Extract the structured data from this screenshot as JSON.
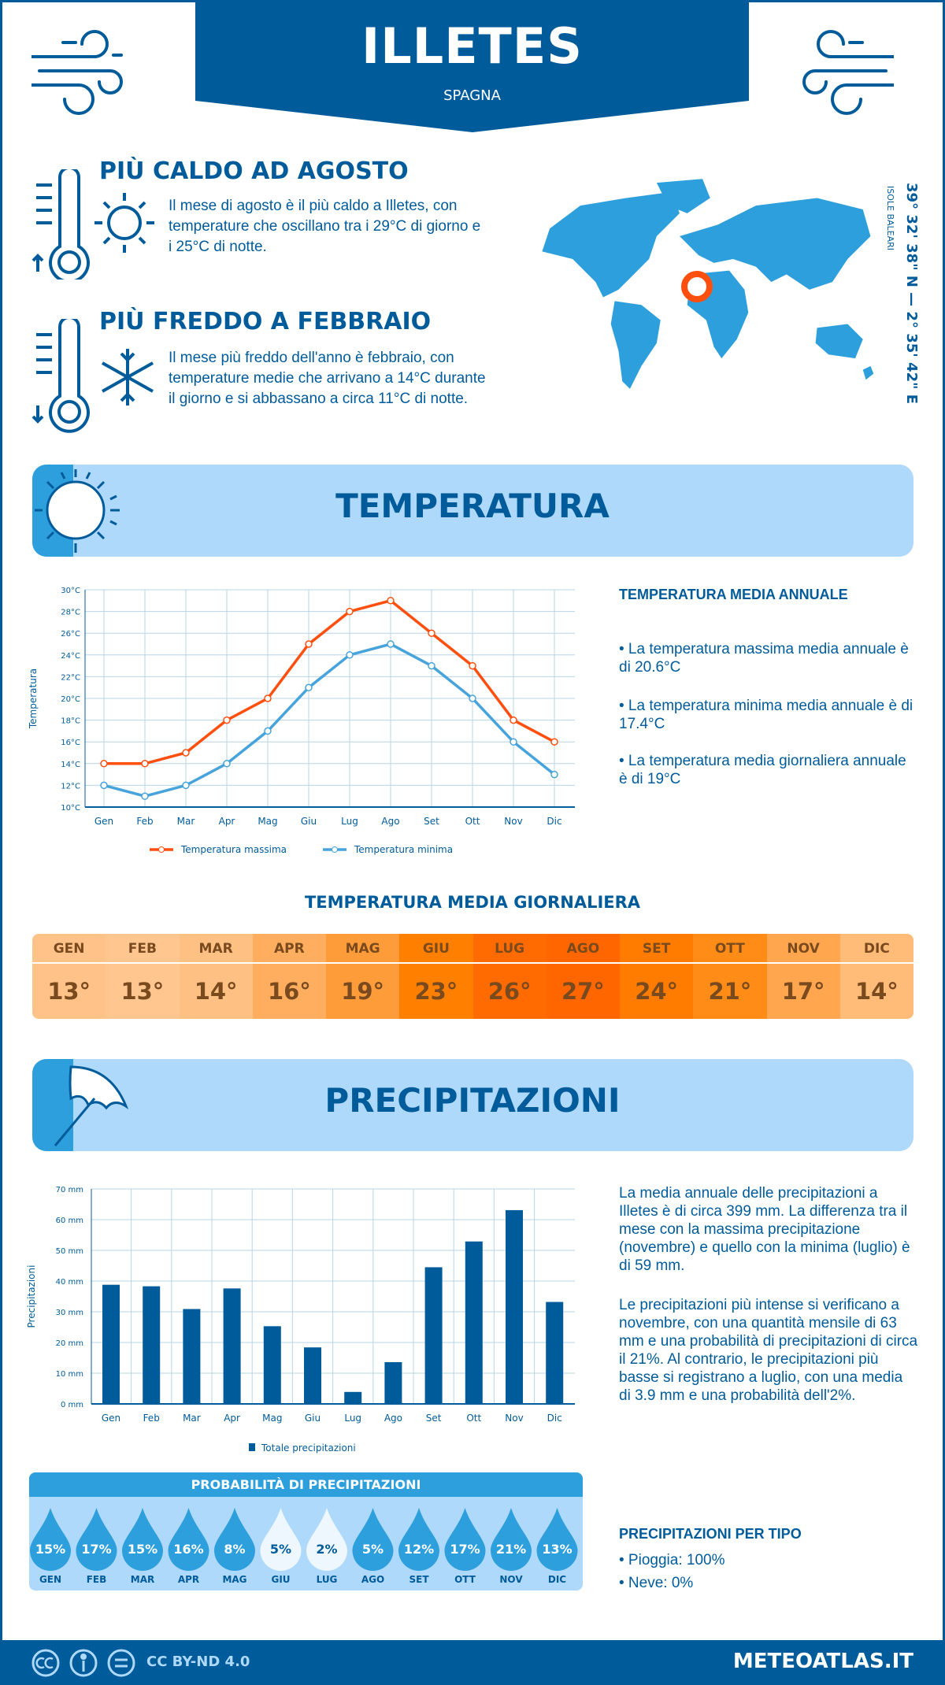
{
  "header": {
    "title": "ILLETES",
    "subtitle": "SPAGNA"
  },
  "warmest": {
    "title": "PIÙ CALDO AD AGOSTO",
    "text": "Il mese di agosto è il più caldo a Illetes, con temperature che oscillano tra i 29°C di giorno e i 25°C di notte."
  },
  "coldest": {
    "title": "PIÙ FREDDO A FEBBRAIO",
    "text": "Il mese più freddo dell'anno è febbraio, con temperature medie che arrivano a 14°C durante il giorno e si abbassano a circa 11°C di notte."
  },
  "location": {
    "coords": "39° 32' 38\" N — 2° 35' 42\" E",
    "region": "ISOLE BALEARI"
  },
  "temperature_section": {
    "title": "TEMPERATURA",
    "annual_title": "TEMPERATURA MEDIA ANNUALE",
    "bullets": [
      "• La temperatura massima media annuale è di 20.6°C",
      "• La temperatura minima media annuale è di 17.4°C",
      "• La temperatura media giornaliera annuale è di 19°C"
    ],
    "daily_title": "TEMPERATURA MEDIA GIORNALIERA",
    "daily": [
      {
        "m": "GEN",
        "v": "13°",
        "c": "#ffc38a"
      },
      {
        "m": "FEB",
        "v": "13°",
        "c": "#ffc690"
      },
      {
        "m": "MAR",
        "v": "14°",
        "c": "#ffc084"
      },
      {
        "m": "APR",
        "v": "16°",
        "c": "#ffad5e"
      },
      {
        "m": "MAG",
        "v": "19°",
        "c": "#ff9c3a"
      },
      {
        "m": "GIU",
        "v": "23°",
        "c": "#ff8000"
      },
      {
        "m": "LUG",
        "v": "26°",
        "c": "#ff6b00"
      },
      {
        "m": "AGO",
        "v": "27°",
        "c": "#ff6600"
      },
      {
        "m": "SET",
        "v": "24°",
        "c": "#ff7c00"
      },
      {
        "m": "OTT",
        "v": "21°",
        "c": "#ff8c17"
      },
      {
        "m": "NOV",
        "v": "17°",
        "c": "#ffa64f"
      },
      {
        "m": "DIC",
        "v": "14°",
        "c": "#ffbb78"
      }
    ]
  },
  "precip_section": {
    "title": "PRECIPITAZIONI",
    "text1": "La media annuale delle precipitazioni a Illetes è di circa 399 mm. La differenza tra il mese con la massima precipitazione (novembre) e quello con la minima (luglio) è di 59 mm.",
    "text2": "Le precipitazioni più intense si verificano a novembre, con una quantità mensile di 63 mm e una probabilità di precipitazioni di circa il 21%. Al contrario, le precipitazioni più basse si registrano a luglio, con una media di 3.9 mm e una probabilità dell'2%.",
    "prob_title": "PROBABILITÀ DI PRECIPITAZIONI",
    "prob": [
      {
        "m": "GEN",
        "v": "15%",
        "light": false
      },
      {
        "m": "FEB",
        "v": "17%",
        "light": false
      },
      {
        "m": "MAR",
        "v": "15%",
        "light": false
      },
      {
        "m": "APR",
        "v": "16%",
        "light": false
      },
      {
        "m": "MAG",
        "v": "8%",
        "light": false
      },
      {
        "m": "GIU",
        "v": "5%",
        "light": true
      },
      {
        "m": "LUG",
        "v": "2%",
        "light": true
      },
      {
        "m": "AGO",
        "v": "5%",
        "light": false
      },
      {
        "m": "SET",
        "v": "12%",
        "light": false
      },
      {
        "m": "OTT",
        "v": "17%",
        "light": false
      },
      {
        "m": "NOV",
        "v": "21%",
        "light": false
      },
      {
        "m": "DIC",
        "v": "13%",
        "light": false
      }
    ],
    "type_title": "PRECIPITAZIONI PER TIPO",
    "types": [
      "• Pioggia: 100%",
      "• Neve: 0%"
    ]
  },
  "footer": {
    "license": "CC BY-ND 4.0",
    "brand": "METEOATLAS.IT"
  },
  "colors": {
    "dark_blue": "#005b9a",
    "mid_blue": "#2e9fdd",
    "light_blue": "#aed9fb",
    "max_series": "#ff4f0f",
    "min_series": "#47a3dc"
  },
  "chart_data": [
    {
      "type": "line",
      "categories": [
        "Gen",
        "Feb",
        "Mar",
        "Apr",
        "Mag",
        "Giu",
        "Lug",
        "Ago",
        "Set",
        "Ott",
        "Nov",
        "Dic"
      ],
      "series": [
        {
          "name": "Temperatura massima",
          "color": "#ff4f0f",
          "values": [
            14,
            14,
            15,
            18,
            20,
            25,
            28,
            29,
            26,
            23,
            18,
            16
          ]
        },
        {
          "name": "Temperatura minima",
          "color": "#47a3dc",
          "values": [
            12,
            11,
            12,
            14,
            17,
            21,
            24,
            25,
            23,
            20,
            16,
            13
          ]
        }
      ],
      "ylabel": "Temperatura",
      "ylim": [
        10,
        30
      ],
      "yticks": [
        "10°C",
        "12°C",
        "14°C",
        "16°C",
        "18°C",
        "20°C",
        "22°C",
        "24°C",
        "26°C",
        "28°C",
        "30°C"
      ],
      "grid": true,
      "legend": "bottom"
    },
    {
      "type": "bar",
      "categories": [
        "Gen",
        "Feb",
        "Mar",
        "Apr",
        "Mag",
        "Giu",
        "Lug",
        "Ago",
        "Set",
        "Ott",
        "Nov",
        "Dic"
      ],
      "series": [
        {
          "name": "Totale precipitazioni",
          "color": "#005b9a",
          "values": [
            38.8,
            38.3,
            30.9,
            37.6,
            25.3,
            18.4,
            3.9,
            13.6,
            44.5,
            52.9,
            63.1,
            33.2
          ]
        }
      ],
      "ylabel": "Precipitazioni",
      "ylim": [
        0,
        70
      ],
      "yticks": [
        "0 mm",
        "10 mm",
        "20 mm",
        "30 mm",
        "40 mm",
        "50 mm",
        "60 mm",
        "70 mm"
      ],
      "grid": true,
      "legend": "bottom"
    }
  ]
}
